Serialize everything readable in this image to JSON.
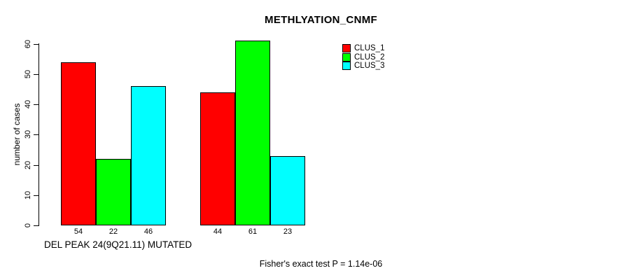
{
  "chart_data": {
    "type": "bar",
    "title": "METHLYATION_CNMF",
    "ylabel": "number of cases",
    "xlabel": "DEL PEAK 24(9Q21.11) MUTATED",
    "annotation": "Fisher's exact test P = 1.14e-06",
    "grid": false,
    "legend_position": "top-right",
    "ylim": [
      0,
      60
    ],
    "y_ticks": [
      0,
      10,
      20,
      30,
      40,
      50,
      60
    ],
    "categories": [
      "group-1",
      "group-2"
    ],
    "series": [
      {
        "name": "CLUS_1",
        "color": "#FF0000",
        "values": [
          54,
          44
        ]
      },
      {
        "name": "CLUS_2",
        "color": "#00FF00",
        "values": [
          22,
          61
        ]
      },
      {
        "name": "CLUS_3",
        "color": "#00FFFF",
        "values": [
          46,
          23
        ]
      }
    ],
    "bar_value_labels": [
      [
        54,
        22,
        46
      ],
      [
        44,
        61,
        23
      ]
    ],
    "axis_color": "#000000",
    "background_color": "#FFFFFF"
  }
}
